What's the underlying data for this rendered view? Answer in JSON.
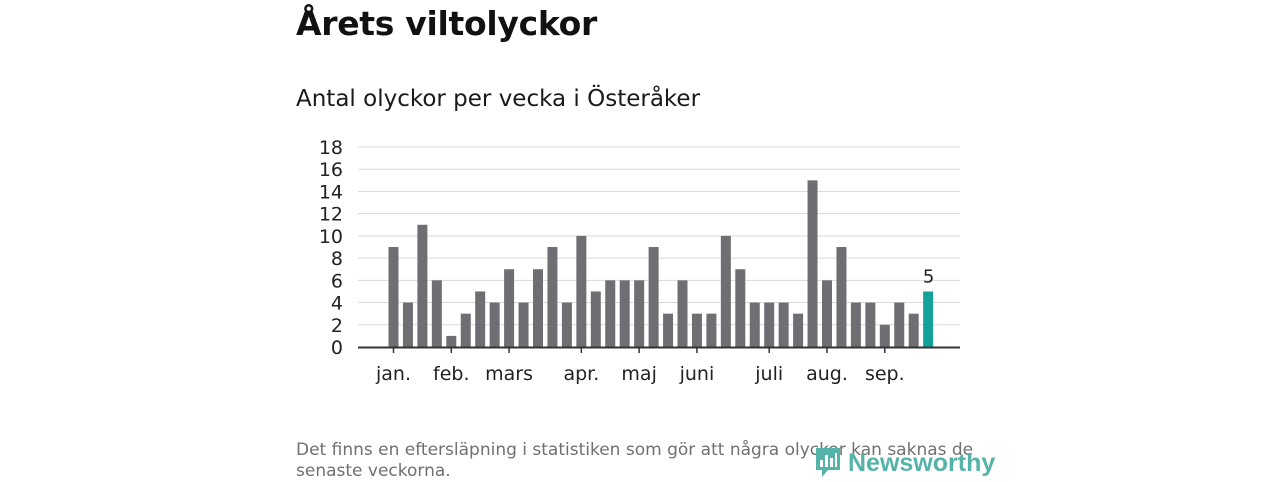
{
  "header": {
    "title": "Årets viltolyckor",
    "subtitle": "Antal olyckor per vecka i Österåker"
  },
  "footnote": "Det finns en eftersläpning i statistiken som gör att några olyckor kan saknas de senaste veckorna.",
  "logo": {
    "text": "Newsworthy"
  },
  "colors": {
    "bar": "#6f6e73",
    "highlight": "#14a19a",
    "grid": "#d9d9d9",
    "axis": "#333333",
    "logo": "#55b3a9"
  },
  "chart_data": {
    "type": "bar",
    "title": "Antal olyckor per vecka i Österåker",
    "xlabel": "",
    "ylabel": "",
    "ylim": [
      0,
      18
    ],
    "yticks": [
      0,
      2,
      4,
      6,
      8,
      10,
      12,
      14,
      16,
      18
    ],
    "grid": true,
    "weeks": [
      1,
      2,
      3,
      4,
      5,
      6,
      7,
      8,
      9,
      10,
      11,
      12,
      13,
      14,
      15,
      16,
      17,
      18,
      19,
      20,
      21,
      22,
      23,
      24,
      25,
      26,
      27,
      28,
      29,
      30,
      31,
      32,
      33,
      34,
      35,
      36,
      37,
      38
    ],
    "values": [
      9,
      4,
      11,
      6,
      1,
      3,
      5,
      4,
      7,
      4,
      7,
      9,
      4,
      10,
      5,
      6,
      6,
      6,
      9,
      3,
      6,
      3,
      3,
      10,
      7,
      4,
      4,
      4,
      3,
      15,
      6,
      9,
      4,
      4,
      2,
      4,
      3,
      5
    ],
    "highlight_index": 37,
    "highlight_label": "5",
    "month_labels": [
      {
        "label": "jan.",
        "week": 1
      },
      {
        "label": "feb.",
        "week": 5
      },
      {
        "label": "mars",
        "week": 9
      },
      {
        "label": "apr.",
        "week": 14
      },
      {
        "label": "maj",
        "week": 18
      },
      {
        "label": "juni",
        "week": 22
      },
      {
        "label": "juli",
        "week": 27
      },
      {
        "label": "aug.",
        "week": 31
      },
      {
        "label": "sep.",
        "week": 35
      }
    ]
  }
}
